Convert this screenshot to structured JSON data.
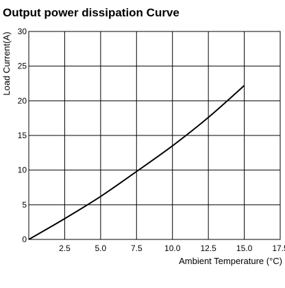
{
  "chart_data": {
    "type": "line",
    "title": "Output power dissipation Curve",
    "xlabel": "Ambient Temperature (°C)",
    "ylabel": "Load Current(A)",
    "xlim": [
      0,
      17.5
    ],
    "ylim": [
      0,
      30
    ],
    "grid": true,
    "x_ticks": [
      "2.5",
      "5.0",
      "7.5",
      "10.0",
      "12.5",
      "15.0",
      "17.5"
    ],
    "y_ticks": [
      "0",
      "5",
      "10",
      "15",
      "20",
      "25",
      "30"
    ],
    "series": [
      {
        "color": "#000000",
        "x": [
          0,
          2.5,
          5.0,
          7.5,
          10.0,
          12.5,
          15.0
        ],
        "y": [
          0,
          3.0,
          6.2,
          9.8,
          13.5,
          17.6,
          22.2
        ]
      }
    ]
  }
}
